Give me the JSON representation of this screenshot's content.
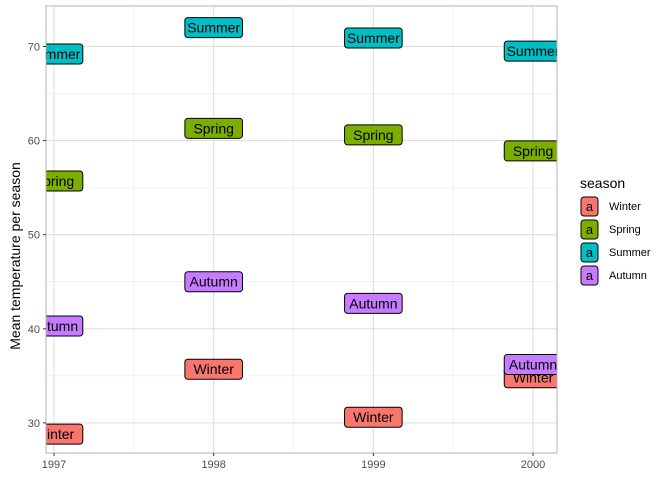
{
  "chart_data": {
    "type": "scatter",
    "title": "",
    "xlabel": "",
    "ylabel": "Mean temperature per season",
    "xlim": [
      1996.95,
      2000.15
    ],
    "ylim": [
      26.8,
      74.3
    ],
    "x_ticks": [
      "1997",
      "1998",
      "1999",
      "2000"
    ],
    "y_ticks": [
      "30",
      "40",
      "50",
      "60",
      "70"
    ],
    "grid": true,
    "legend_position": "right",
    "legend": {
      "title": "season",
      "key_glyph": "a",
      "entries": [
        "Winter",
        "Spring",
        "Summer",
        "Autumn"
      ]
    },
    "colors": {
      "Winter": "#F8766D",
      "Spring": "#7CAE00",
      "Summer": "#00BFC4",
      "Autumn": "#C77CFF"
    },
    "series": [
      {
        "name": "Winter",
        "points": [
          {
            "x": 1997,
            "y": 28.8,
            "label": "Winter"
          },
          {
            "x": 1998,
            "y": 35.7,
            "label": "Winter"
          },
          {
            "x": 1999,
            "y": 30.6,
            "label": "Winter"
          },
          {
            "x": 2000,
            "y": 34.8,
            "label": "Winter"
          }
        ]
      },
      {
        "name": "Spring",
        "points": [
          {
            "x": 1997,
            "y": 55.7,
            "label": "Spring"
          },
          {
            "x": 1998,
            "y": 61.3,
            "label": "Spring"
          },
          {
            "x": 1999,
            "y": 60.6,
            "label": "Spring"
          },
          {
            "x": 2000,
            "y": 58.9,
            "label": "Spring"
          }
        ]
      },
      {
        "name": "Summer",
        "points": [
          {
            "x": 1997,
            "y": 69.2,
            "label": "Summer"
          },
          {
            "x": 1998,
            "y": 72.0,
            "label": "Summer"
          },
          {
            "x": 1999,
            "y": 70.9,
            "label": "Summer"
          },
          {
            "x": 2000,
            "y": 69.5,
            "label": "Summer"
          }
        ]
      },
      {
        "name": "Autumn",
        "points": [
          {
            "x": 1997,
            "y": 40.3,
            "label": "Autumn"
          },
          {
            "x": 1998,
            "y": 45.0,
            "label": "Autumn"
          },
          {
            "x": 1999,
            "y": 42.7,
            "label": "Autumn"
          },
          {
            "x": 2000,
            "y": 36.2,
            "label": "Autumn"
          }
        ]
      }
    ]
  }
}
